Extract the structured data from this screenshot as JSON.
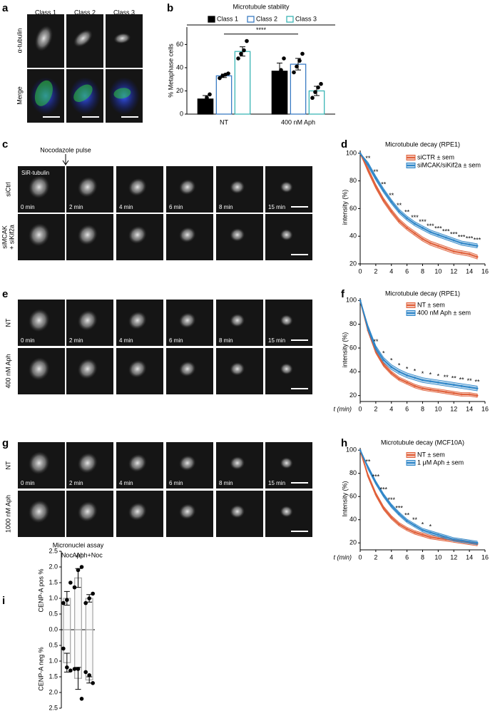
{
  "panels": {
    "letters": [
      "a",
      "b",
      "c",
      "d",
      "e",
      "f",
      "g",
      "h",
      "i"
    ],
    "a": {
      "columns": [
        "Class 1",
        "Class 2",
        "Class 3"
      ],
      "rows": [
        "α-tubulin",
        "Merge"
      ]
    },
    "c": {
      "annotation": "Nocodazole pulse",
      "stain": "SiR-tubulin",
      "rows": [
        [
          "siCtrl"
        ],
        [
          "siMCAK",
          "+ siKif2a"
        ]
      ]
    },
    "times": [
      "0 min",
      "2 min",
      "4 min",
      "6 min",
      "8 min",
      "15 min"
    ],
    "e": {
      "rows": [
        [
          "NT"
        ],
        [
          "400 nM Aph"
        ]
      ]
    },
    "g": {
      "rows": [
        [
          "NT"
        ],
        [
          "1000 nM Aph"
        ]
      ]
    }
  },
  "chart_data": [
    {
      "type": "bar",
      "title": "Microtubule stability",
      "ylabel": "% Metaphase cells",
      "grouped": true,
      "categories": [
        "NT",
        "400 nM Aph"
      ],
      "series": [
        {
          "name": "Class 1",
          "color": "#000000",
          "filled": true,
          "values": [
            13,
            37
          ],
          "errors": [
            3,
            7
          ],
          "points": [
            [
              5,
              10,
              14,
              17
            ],
            [
              22,
              33,
              38,
              48
            ]
          ]
        },
        {
          "name": "Class 2",
          "color": "#3b7cc4",
          "filled": false,
          "values": [
            33,
            43
          ],
          "errors": [
            1.5,
            5
          ],
          "points": [
            [
              31,
              33,
              34,
              35
            ],
            [
              36,
              41,
              46,
              52
            ]
          ]
        },
        {
          "name": "Class 3",
          "color": "#3bb5b5",
          "filled": false,
          "values": [
            54,
            20
          ],
          "errors": [
            4,
            4
          ],
          "points": [
            [
              48,
              52,
              55,
              63
            ],
            [
              14,
              19,
              23,
              26
            ]
          ]
        }
      ],
      "ylim": [
        0,
        75
      ],
      "yticks": [
        0,
        20,
        40,
        60
      ],
      "legend": "top",
      "significance": {
        "label": "****",
        "y": 69
      }
    },
    {
      "type": "line",
      "title": "Microtubule decay (RPE1)",
      "ylabel": "intensity (%)",
      "x": [
        0,
        1,
        2,
        3,
        4,
        5,
        6,
        7,
        8,
        9,
        10,
        11,
        12,
        13,
        14,
        15
      ],
      "series": [
        {
          "name": "siCTR ± sem",
          "color": "#e0603a",
          "values": [
            100,
            88,
            76,
            66,
            58,
            51,
            46,
            42,
            38,
            35,
            33,
            31,
            29,
            28,
            27,
            25
          ],
          "sem": [
            0,
            1.5,
            1.5,
            1.5,
            1.5,
            1.5,
            1.5,
            1.5,
            1.5,
            1.5,
            1.5,
            1.5,
            1.5,
            1.5,
            1.5,
            1.5
          ]
        },
        {
          "name": "siMCAK/siKif2a ± sem",
          "color": "#2f86c8",
          "values": [
            100,
            92,
            82,
            73,
            65,
            58,
            53,
            49,
            46,
            43,
            41,
            39,
            37,
            35,
            34,
            33
          ],
          "sem": [
            0,
            1.5,
            1.5,
            1.5,
            1.5,
            1.5,
            1.5,
            1.5,
            1.5,
            1.5,
            1.5,
            1.5,
            1.5,
            1.5,
            1.5,
            1.5
          ]
        }
      ],
      "xlim": [
        0,
        16
      ],
      "xticks": [
        0,
        2,
        4,
        6,
        8,
        10,
        12,
        14,
        16
      ],
      "ylim": [
        20,
        102
      ],
      "yticks": [
        20,
        40,
        60,
        80,
        100
      ],
      "legend": "upper right",
      "annotations": [
        {
          "x": 1,
          "label": "**"
        },
        {
          "x": 2,
          "label": "**"
        },
        {
          "x": 3,
          "label": "**"
        },
        {
          "x": 4,
          "label": "**"
        },
        {
          "x": 5,
          "label": "**"
        },
        {
          "x": 6,
          "label": "**"
        },
        {
          "x": 7,
          "label": "***"
        },
        {
          "x": 8,
          "label": "***"
        },
        {
          "x": 9,
          "label": "***"
        },
        {
          "x": 10,
          "label": "***"
        },
        {
          "x": 11,
          "label": "***"
        },
        {
          "x": 12,
          "label": "***"
        },
        {
          "x": 13,
          "label": "***"
        },
        {
          "x": 14,
          "label": "***"
        },
        {
          "x": 15,
          "label": "***"
        }
      ]
    },
    {
      "type": "line",
      "title": "Microtubule decay (RPE1)",
      "ylabel": "intensity (%)",
      "xlabel": "t (min)",
      "x": [
        0,
        1,
        2,
        3,
        4,
        5,
        6,
        7,
        8,
        9,
        10,
        11,
        12,
        13,
        14,
        15
      ],
      "series": [
        {
          "name": "NT ± sem",
          "color": "#e0603a",
          "values": [
            100,
            75,
            57,
            46,
            39,
            34,
            31,
            28,
            26,
            25,
            24,
            23,
            22,
            21,
            21,
            20
          ],
          "sem": [
            0,
            1.5,
            1.5,
            1.5,
            1.5,
            1.5,
            1.5,
            1.5,
            1.5,
            1.5,
            1.5,
            1.5,
            1.5,
            1.5,
            1.5,
            1.5
          ]
        },
        {
          "name": "400 nM Aph ± sem",
          "color": "#2f86c8",
          "values": [
            100,
            77,
            60,
            50,
            44,
            40,
            37,
            35,
            33,
            32,
            31,
            30,
            29,
            28,
            27,
            26
          ],
          "sem": [
            0,
            2,
            2,
            2,
            2,
            2,
            2,
            2,
            2,
            2,
            2,
            2,
            2,
            2,
            2,
            2
          ]
        }
      ],
      "xlim": [
        0,
        16
      ],
      "xticks": [
        0,
        2,
        4,
        6,
        8,
        10,
        12,
        14,
        16
      ],
      "ylim": [
        15,
        102
      ],
      "yticks": [
        20,
        40,
        60,
        80,
        100
      ],
      "legend": "upper right",
      "annotations": [
        {
          "x": 2,
          "label": "**"
        },
        {
          "x": 3,
          "label": "*"
        },
        {
          "x": 4,
          "label": "*"
        },
        {
          "x": 5,
          "label": "*"
        },
        {
          "x": 6,
          "label": "*"
        },
        {
          "x": 7,
          "label": "*"
        },
        {
          "x": 8,
          "label": "*"
        },
        {
          "x": 9,
          "label": "*"
        },
        {
          "x": 10,
          "label": "*"
        },
        {
          "x": 11,
          "label": "**"
        },
        {
          "x": 12,
          "label": "**"
        },
        {
          "x": 13,
          "label": "**"
        },
        {
          "x": 14,
          "label": "**"
        },
        {
          "x": 15,
          "label": "**"
        }
      ]
    },
    {
      "type": "line",
      "title": "Microtubule decay (MCF10A)",
      "ylabel": "Intensity (%)",
      "xlabel": "t (min)",
      "x": [
        0,
        1,
        2,
        3,
        4,
        5,
        6,
        7,
        8,
        9,
        10,
        11,
        12,
        13,
        14,
        15
      ],
      "series": [
        {
          "name": "NT ± sem",
          "color": "#e0603a",
          "values": [
            100,
            78,
            62,
            50,
            42,
            36,
            32,
            29,
            27,
            25,
            24,
            23,
            22,
            21,
            20,
            19
          ],
          "sem": [
            0,
            1.5,
            1.5,
            1.5,
            1.5,
            1.5,
            1.5,
            1.5,
            1.5,
            1.5,
            1.5,
            1.5,
            1.5,
            1.5,
            1.5,
            1.5
          ]
        },
        {
          "name": "1 μM Aph ± sem",
          "color": "#2f86c8",
          "values": [
            100,
            85,
            72,
            61,
            52,
            45,
            39,
            35,
            31,
            29,
            27,
            25,
            23,
            22,
            21,
            20
          ],
          "sem": [
            0,
            1.5,
            1.5,
            1.5,
            1.5,
            1.5,
            1.5,
            1.5,
            1.5,
            1.5,
            1.5,
            1.5,
            1.5,
            1.5,
            1.5,
            1.5
          ]
        }
      ],
      "xlim": [
        0,
        16
      ],
      "xticks": [
        0,
        2,
        4,
        6,
        8,
        10,
        12,
        14,
        16
      ],
      "ylim": [
        14,
        102
      ],
      "yticks": [
        20,
        40,
        60,
        80,
        100
      ],
      "legend": "upper right",
      "annotations": [
        {
          "x": 1,
          "label": "**"
        },
        {
          "x": 2,
          "label": "***"
        },
        {
          "x": 3,
          "label": "***"
        },
        {
          "x": 4,
          "label": "***"
        },
        {
          "x": 5,
          "label": "***"
        },
        {
          "x": 6,
          "label": "**"
        },
        {
          "x": 7,
          "label": "**"
        },
        {
          "x": 8,
          "label": "*"
        },
        {
          "x": 9,
          "label": "*"
        }
      ]
    },
    {
      "type": "bar",
      "title": "Micronuclei assay",
      "ylabels": [
        "CENP-A pos %",
        "CENP-A neg %"
      ],
      "grouped": false,
      "categories": [
        "Noc",
        "Aph",
        "Aph+Noc"
      ],
      "series": [
        {
          "color": "#aaaaaa",
          "filled": false,
          "values": [
            1.0,
            1.65,
            1.0
          ],
          "errors": [
            0.22,
            0.3,
            0.12
          ],
          "points": [
            [
              0.85,
              0.95,
              1.5
            ],
            [
              1.35,
              1.9,
              2.0
            ],
            [
              0.85,
              1.0,
              1.15
            ]
          ]
        },
        {
          "color": "#aaaaaa",
          "filled": false,
          "values": [
            -1.05,
            -1.55,
            -1.6
          ],
          "errors": [
            0.3,
            0.35,
            0.1
          ],
          "points": [
            [
              -0.6,
              -1.2,
              -1.3
            ],
            [
              -1.25,
              -1.25,
              -2.2
            ],
            [
              -1.35,
              -1.45,
              -1.7
            ]
          ]
        }
      ],
      "ylim": [
        -2.5,
        2.5
      ],
      "yticks": [
        {
          "value": 2.5,
          "label": "2.5"
        },
        {
          "value": 2.0,
          "label": "2.0"
        },
        {
          "value": 1.5,
          "label": "1.5"
        },
        {
          "value": 1.0,
          "label": "1.0"
        },
        {
          "value": 0.5,
          "label": "0.5"
        },
        {
          "value": 0,
          "label": "0.0"
        },
        {
          "value": -0.5,
          "label": "0.5"
        },
        {
          "value": -1.0,
          "label": "1.0"
        },
        {
          "value": -1.5,
          "label": "1.5"
        },
        {
          "value": -2.0,
          "label": "2.0"
        },
        {
          "value": -2.5,
          "label": "2.5"
        }
      ]
    }
  ]
}
